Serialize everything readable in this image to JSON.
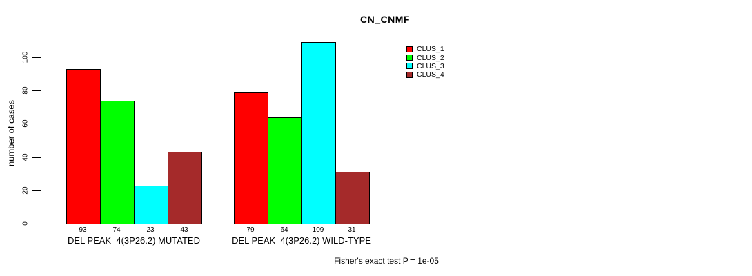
{
  "title": "CN_CNMF",
  "subtitle": "Fisher's exact test P = 1e-05",
  "y_axis": {
    "label": "number of cases",
    "ticks": [
      0,
      20,
      40,
      60,
      80,
      100
    ]
  },
  "legend": {
    "items": [
      {
        "label": "CLUS_1",
        "color": "#ff0000"
      },
      {
        "label": "CLUS_2",
        "color": "#00ff00"
      },
      {
        "label": "CLUS_3",
        "color": "#00ffff"
      },
      {
        "label": "CLUS_4",
        "color": "#a52a2a"
      }
    ]
  },
  "chart_data": {
    "type": "bar",
    "title": "CN_CNMF",
    "xlabel": "",
    "ylabel": "number of cases",
    "ylim": [
      0,
      109
    ],
    "y_ticks": [
      0,
      20,
      40,
      60,
      80,
      100
    ],
    "grid": false,
    "legend_position": "right-inside",
    "categories": [
      "DEL PEAK  4(3P26.2) MUTATED",
      "DEL PEAK  4(3P26.2) WILD-TYPE"
    ],
    "series": [
      {
        "name": "CLUS_1",
        "color": "#ff0000",
        "values": [
          93,
          79
        ]
      },
      {
        "name": "CLUS_2",
        "color": "#00ff00",
        "values": [
          74,
          64
        ]
      },
      {
        "name": "CLUS_3",
        "color": "#00ffff",
        "values": [
          23,
          109
        ]
      },
      {
        "name": "CLUS_4",
        "color": "#a52a2a",
        "values": [
          43,
          31
        ]
      }
    ],
    "bar_value_labels": [
      [
        93,
        74,
        23,
        43
      ],
      [
        79,
        64,
        109,
        31
      ]
    ],
    "annotation": "Fisher's exact test P = 1e-05"
  }
}
